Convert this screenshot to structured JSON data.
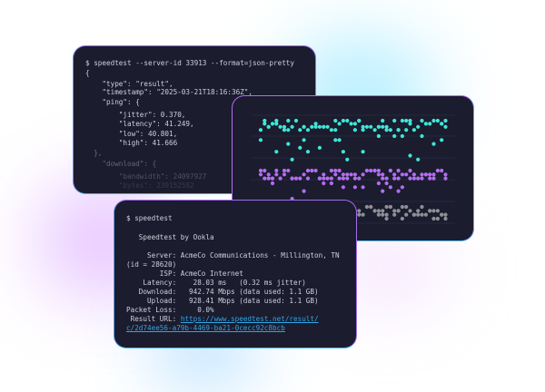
{
  "colors": {
    "panel_bg": "#1b1c2e",
    "text": "#cfd0da",
    "link": "#2fa6e6",
    "dot_cyan": "#3fe6d8",
    "dot_purple": "#b36cf2",
    "dot_grey": "#8e8e94",
    "grid": "#2a2c45"
  },
  "json_terminal": {
    "lines": [
      "$ speedtest --server-id 33913 --format=json-pretty",
      "{",
      "    \"type\": \"result\",",
      "    \"timestamp\": \"2025-03-21T18:16:36Z\",",
      "    \"ping\": {",
      "        \"jitter\": 0.370,",
      "        \"latency\": 41.249,",
      "        \"low\": 40.801,",
      "        \"high\": 41.666",
      "  },",
      "    \"download\": {",
      "        \"bandwidth\": 24097927",
      "        \"bytes\": 239152592"
    ]
  },
  "speed_terminal": {
    "command": "$ speedtest",
    "title": "   Speedtest by Ookla",
    "server": "     Server: AcmeCo Communications - Millington, TN",
    "server_id": "(id = 28620)",
    "isp": "        ISP: AcmeCo Internet",
    "latency": "    Latency:    28.03 ms   (0.32 ms jitter)",
    "download": "   Download:   942.74 Mbps (data used: 1.1 GB)",
    "upload": "     Upload:   928.41 Mbps (data used: 1.1 GB)",
    "packet_loss": "Packet Loss:     0.0%",
    "result_label": " Result URL: ",
    "result_url_1": "https://www.speedtest.net/result/",
    "result_url_2": "c/2d74ee56-a79b-4469-ba21-0cecc92c8bcb"
  }
}
